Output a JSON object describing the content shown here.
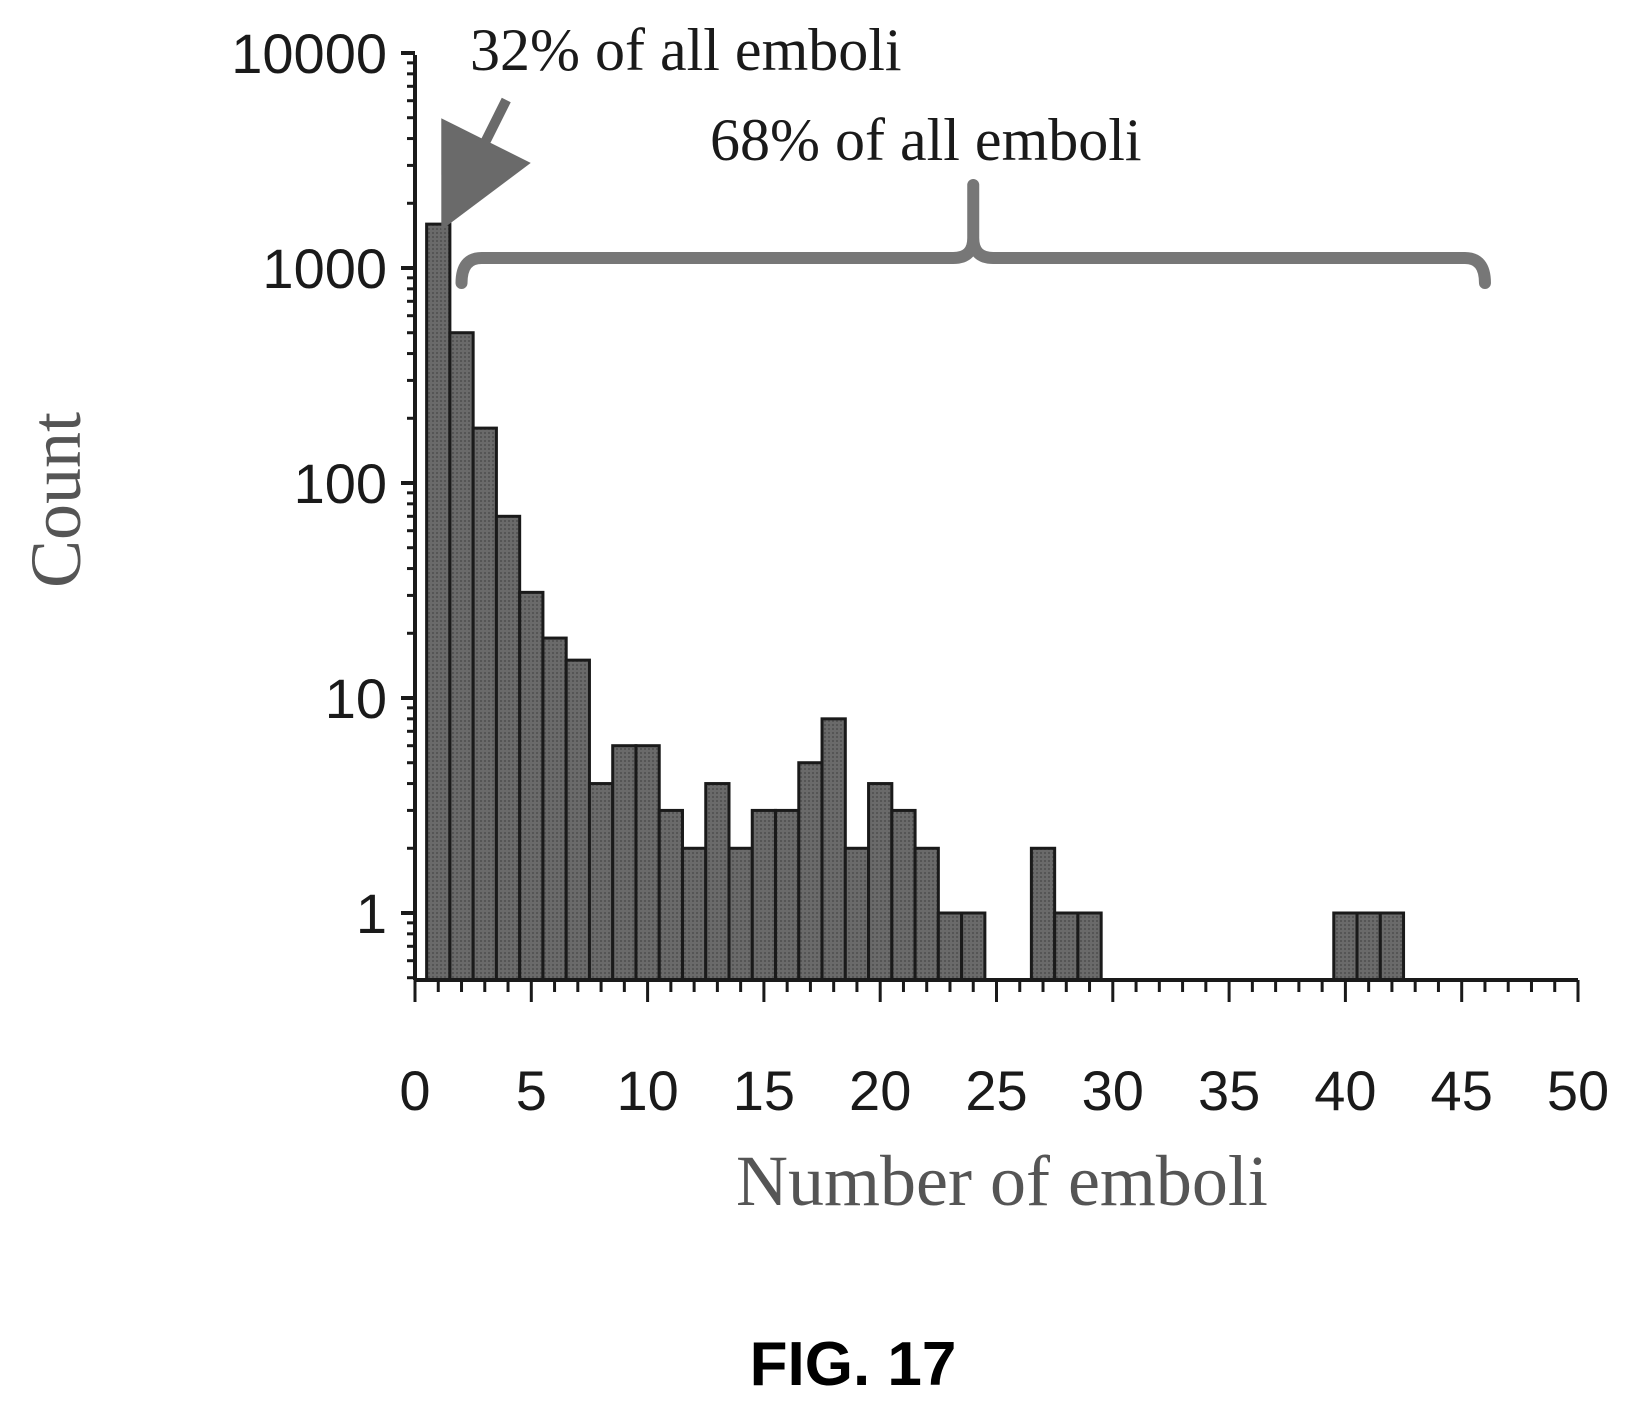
{
  "chart_data": {
    "type": "bar",
    "title": "",
    "xlabel": "Number of emboli",
    "ylabel": "Count",
    "y_scale": "log",
    "ylim": [
      0.5,
      10000
    ],
    "xlim": [
      0,
      50
    ],
    "bin_width": 1,
    "y_ticks": [
      1,
      10,
      100,
      1000,
      10000
    ],
    "y_tick_labels": [
      "1",
      "10",
      "100",
      "1000",
      "10000"
    ],
    "x_ticks": [
      0,
      5,
      10,
      15,
      20,
      25,
      30,
      35,
      40,
      45,
      50
    ],
    "x_tick_labels": [
      "0",
      "5",
      "10",
      "15",
      "20",
      "25",
      "30",
      "35",
      "40",
      "45",
      "50"
    ],
    "x": [
      1,
      2,
      3,
      4,
      5,
      6,
      7,
      8,
      9,
      10,
      11,
      12,
      13,
      14,
      15,
      16,
      17,
      18,
      19,
      20,
      21,
      22,
      23,
      24,
      27,
      28,
      29,
      40,
      41,
      42
    ],
    "values": [
      1600,
      500,
      180,
      70,
      31,
      19,
      15,
      4,
      6,
      6,
      3,
      2,
      4,
      2,
      3,
      3,
      5,
      8,
      2,
      4,
      3,
      2,
      1,
      1,
      2,
      1,
      1,
      1,
      1,
      1
    ],
    "grid": false,
    "bar_color": "#666666",
    "annotations": [
      {
        "text": "32% of all emboli",
        "points_to_x": 1
      },
      {
        "text": "68% of all emboli",
        "brace_from_x": 2,
        "brace_to_x": 46
      }
    ]
  },
  "caption": "FIG. 17"
}
